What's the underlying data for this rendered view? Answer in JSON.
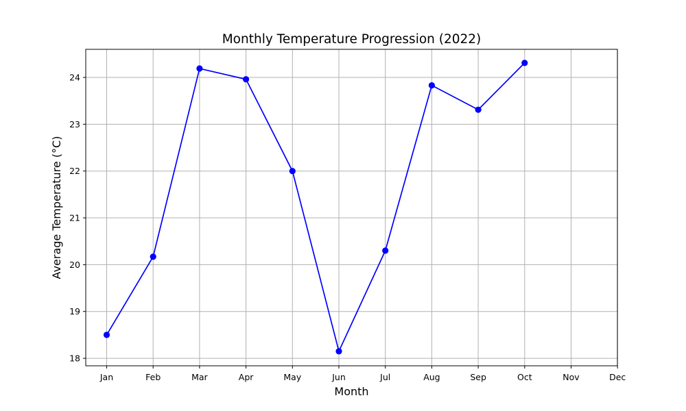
{
  "chart_data": {
    "type": "line",
    "title": "Monthly Temperature Progression (2022)",
    "xlabel": "Month",
    "ylabel": "Average Temperature (°C)",
    "categories": [
      "Jan",
      "Feb",
      "Mar",
      "Apr",
      "May",
      "Jun",
      "Jul",
      "Aug",
      "Sep",
      "Oct",
      "Nov",
      "Dec"
    ],
    "series": [
      {
        "values": [
          18.5,
          20.17,
          24.19,
          23.96,
          22.0,
          18.15,
          20.3,
          23.83,
          23.31,
          24.31,
          null,
          null
        ],
        "color": "#0000ff",
        "marker": "circle"
      }
    ],
    "yticks": [
      18,
      19,
      20,
      21,
      22,
      23,
      24
    ],
    "ylim": [
      17.84,
      24.6
    ],
    "grid": true,
    "grid_color": "#b0b0b0"
  }
}
